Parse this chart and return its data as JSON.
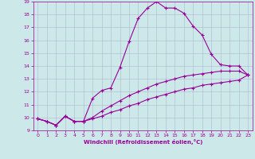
{
  "xlabel": "Windchill (Refroidissement éolien,°C)",
  "bg_color": "#cce8e8",
  "line_color": "#990099",
  "grid_color": "#aaaacc",
  "xlim": [
    -0.5,
    23.5
  ],
  "ylim": [
    9,
    19
  ],
  "xticks": [
    0,
    1,
    2,
    3,
    4,
    5,
    6,
    7,
    8,
    9,
    10,
    11,
    12,
    13,
    14,
    15,
    16,
    17,
    18,
    19,
    20,
    21,
    22,
    23
  ],
  "yticks": [
    9,
    10,
    11,
    12,
    13,
    14,
    15,
    16,
    17,
    18,
    19
  ],
  "curve1_x": [
    0,
    1,
    2,
    3,
    4,
    5,
    6,
    7,
    8,
    9,
    10,
    11,
    12,
    13,
    14,
    15,
    16,
    17,
    18,
    19,
    20,
    21,
    22,
    23
  ],
  "curve1_y": [
    9.9,
    9.7,
    9.4,
    10.1,
    9.7,
    9.7,
    11.5,
    12.1,
    12.3,
    13.9,
    15.9,
    17.7,
    18.5,
    19.0,
    18.5,
    18.5,
    18.1,
    17.1,
    16.4,
    14.9,
    14.1,
    14.0,
    14.0,
    13.3
  ],
  "curve2_x": [
    0,
    1,
    2,
    3,
    4,
    5,
    6,
    7,
    8,
    9,
    10,
    11,
    12,
    13,
    14,
    15,
    16,
    17,
    18,
    19,
    20,
    21,
    22,
    23
  ],
  "curve2_y": [
    9.9,
    9.7,
    9.4,
    10.1,
    9.7,
    9.7,
    10.0,
    10.5,
    10.9,
    11.3,
    11.7,
    12.0,
    12.3,
    12.6,
    12.8,
    13.0,
    13.2,
    13.3,
    13.4,
    13.5,
    13.6,
    13.6,
    13.6,
    13.3
  ],
  "curve3_x": [
    0,
    1,
    2,
    3,
    4,
    5,
    6,
    7,
    8,
    9,
    10,
    11,
    12,
    13,
    14,
    15,
    16,
    17,
    18,
    19,
    20,
    21,
    22,
    23
  ],
  "curve3_y": [
    9.9,
    9.7,
    9.4,
    10.1,
    9.7,
    9.7,
    9.9,
    10.1,
    10.4,
    10.6,
    10.9,
    11.1,
    11.4,
    11.6,
    11.8,
    12.0,
    12.2,
    12.3,
    12.5,
    12.6,
    12.7,
    12.8,
    12.9,
    13.3
  ]
}
